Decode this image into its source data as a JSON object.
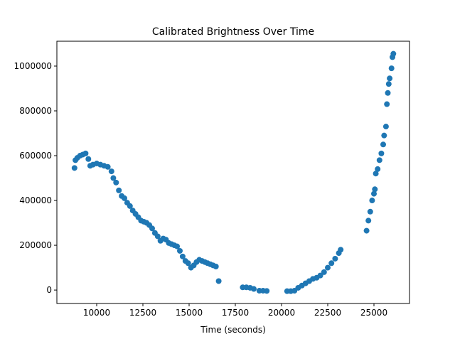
{
  "chart_data": {
    "type": "scatter",
    "title": "Calibrated Brightness Over Time",
    "x_label": "Time (seconds)",
    "xlim": [
      7846,
      26923
    ],
    "ylim": [
      -60000,
      1111000
    ],
    "xticks": [
      10000,
      12500,
      15000,
      17500,
      20000,
      22500,
      25000
    ],
    "yticks": [
      0,
      200000,
      400000,
      600000,
      800000,
      1000000
    ],
    "color": "#1f77b4",
    "x": [
      8800,
      8850,
      8950,
      9100,
      9250,
      9400,
      9550,
      9650,
      9800,
      10000,
      10200,
      10400,
      10600,
      10800,
      10900,
      11050,
      11200,
      11350,
      11500,
      11650,
      11800,
      11950,
      12100,
      12250,
      12400,
      12550,
      12700,
      12850,
      13000,
      13150,
      13300,
      13450,
      13600,
      13750,
      13900,
      14050,
      14200,
      14350,
      14500,
      14650,
      14800,
      14950,
      15100,
      15250,
      15400,
      15550,
      15700,
      15850,
      16000,
      16150,
      16300,
      16450,
      16600,
      17900,
      18100,
      18300,
      18500,
      18800,
      19000,
      19200,
      20300,
      20500,
      20700,
      20900,
      21100,
      21300,
      21500,
      21700,
      21900,
      22100,
      22300,
      22500,
      22700,
      22900,
      23100,
      23200,
      24600,
      24700,
      24800,
      24900,
      25000,
      25050,
      25100,
      25200,
      25300,
      25400,
      25500,
      25550,
      25650,
      25700,
      25750,
      25800,
      25850,
      25950,
      26000,
      26050
    ],
    "values": [
      545000,
      580000,
      590000,
      600000,
      605000,
      610000,
      585000,
      555000,
      560000,
      565000,
      560000,
      555000,
      550000,
      530000,
      500000,
      480000,
      445000,
      420000,
      410000,
      390000,
      375000,
      355000,
      340000,
      325000,
      310000,
      305000,
      300000,
      290000,
      275000,
      255000,
      240000,
      220000,
      230000,
      225000,
      210000,
      205000,
      200000,
      195000,
      175000,
      150000,
      130000,
      120000,
      100000,
      110000,
      125000,
      135000,
      130000,
      125000,
      120000,
      115000,
      110000,
      105000,
      40000,
      12000,
      12000,
      10000,
      5000,
      -3000,
      -3000,
      -4000,
      -5000,
      -5000,
      -3000,
      10000,
      20000,
      30000,
      40000,
      50000,
      55000,
      65000,
      80000,
      100000,
      120000,
      140000,
      165000,
      180000,
      265000,
      310000,
      350000,
      400000,
      430000,
      450000,
      520000,
      540000,
      580000,
      610000,
      650000,
      690000,
      730000,
      830000,
      880000,
      920000,
      945000,
      990000,
      1040000,
      1055000
    ]
  }
}
